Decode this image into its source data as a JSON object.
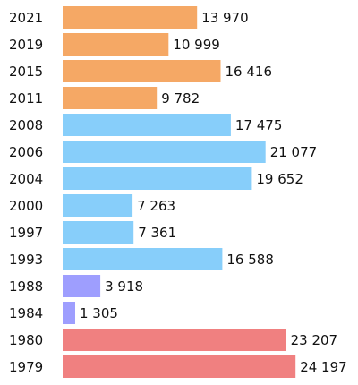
{
  "chart_data": {
    "type": "bar",
    "orientation": "horizontal",
    "title": "",
    "xlabel": "",
    "ylabel": "",
    "grid": false,
    "xlim": [
      0,
      26500
    ],
    "bars": [
      {
        "year": "2021",
        "value": 13970,
        "label": "13 970",
        "color": "#f5a865"
      },
      {
        "year": "2019",
        "value": 10999,
        "label": "10 999",
        "color": "#f5a865"
      },
      {
        "year": "2015",
        "value": 16416,
        "label": "16 416",
        "color": "#f5a865"
      },
      {
        "year": "2011",
        "value": 9782,
        "label": "9 782",
        "color": "#f5a865"
      },
      {
        "year": "2008",
        "value": 17475,
        "label": "17 475",
        "color": "#87cefa"
      },
      {
        "year": "2006",
        "value": 21077,
        "label": "21 077",
        "color": "#87cefa"
      },
      {
        "year": "2004",
        "value": 19652,
        "label": "19 652",
        "color": "#87cefa"
      },
      {
        "year": "2000",
        "value": 7263,
        "label": "7 263",
        "color": "#87cefa"
      },
      {
        "year": "1997",
        "value": 7361,
        "label": "7 361",
        "color": "#87cefa"
      },
      {
        "year": "1993",
        "value": 16588,
        "label": "16 588",
        "color": "#87cefa"
      },
      {
        "year": "1988",
        "value": 3918,
        "label": "3 918",
        "color": "#9e9efe"
      },
      {
        "year": "1984",
        "value": 1305,
        "label": "1 305",
        "color": "#9e9efe"
      },
      {
        "year": "1980",
        "value": 23207,
        "label": "23 207",
        "color": "#f08080"
      },
      {
        "year": "1979",
        "value": 24197,
        "label": "24 197",
        "color": "#f08080"
      }
    ]
  }
}
